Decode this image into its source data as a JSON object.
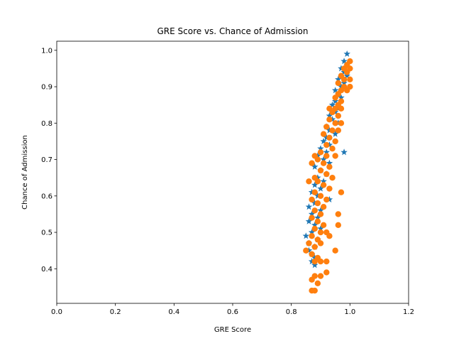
{
  "chart_data": {
    "type": "scatter",
    "title": "GRE Score vs. Chance of Admission",
    "xlabel": "GRE Score",
    "ylabel": "Chance of Admission",
    "xlim": [
      0.0,
      1.2
    ],
    "ylim": [
      0.305,
      1.025
    ],
    "xticks": [
      "0.0",
      "0.2",
      "0.4",
      "0.6",
      "0.8",
      "1.0",
      "1.2"
    ],
    "yticks": [
      "0.4",
      "0.5",
      "0.6",
      "0.7",
      "0.8",
      "0.9",
      "1.0"
    ],
    "grid": false,
    "legend": "none",
    "colors": {
      "series_a": "#1f77b4",
      "series_b": "#ff7f0e"
    },
    "series": [
      {
        "marker": "star",
        "color": "#1f77b4",
        "points": [
          [
            0.99,
            0.99
          ],
          [
            0.98,
            0.97
          ],
          [
            0.99,
            0.96
          ],
          [
            0.97,
            0.95
          ],
          [
            0.98,
            0.94
          ],
          [
            0.99,
            0.93
          ],
          [
            0.96,
            0.92
          ],
          [
            0.98,
            0.91
          ],
          [
            0.97,
            0.9
          ],
          [
            0.95,
            0.89
          ],
          [
            0.96,
            0.88
          ],
          [
            0.97,
            0.87
          ],
          [
            0.95,
            0.86
          ],
          [
            0.94,
            0.85
          ],
          [
            0.96,
            0.84
          ],
          [
            0.95,
            0.83
          ],
          [
            0.93,
            0.82
          ],
          [
            0.94,
            0.81
          ],
          [
            0.96,
            0.8
          ],
          [
            0.92,
            0.79
          ],
          [
            0.93,
            0.78
          ],
          [
            0.95,
            0.77
          ],
          [
            0.92,
            0.76
          ],
          [
            0.91,
            0.75
          ],
          [
            0.93,
            0.74
          ],
          [
            0.9,
            0.73
          ],
          [
            0.92,
            0.72
          ],
          [
            0.98,
            0.72
          ],
          [
            0.89,
            0.71
          ],
          [
            0.91,
            0.7
          ],
          [
            0.93,
            0.69
          ],
          [
            0.88,
            0.68
          ],
          [
            0.9,
            0.67
          ],
          [
            0.92,
            0.66
          ],
          [
            0.89,
            0.65
          ],
          [
            0.91,
            0.64
          ],
          [
            0.88,
            0.63
          ],
          [
            0.9,
            0.62
          ],
          [
            0.87,
            0.61
          ],
          [
            0.89,
            0.6
          ],
          [
            0.93,
            0.59
          ],
          [
            0.88,
            0.58
          ],
          [
            0.86,
            0.57
          ],
          [
            0.9,
            0.56
          ],
          [
            0.87,
            0.55
          ],
          [
            0.89,
            0.54
          ],
          [
            0.86,
            0.53
          ],
          [
            0.88,
            0.52
          ],
          [
            0.9,
            0.51
          ],
          [
            0.87,
            0.5
          ],
          [
            0.85,
            0.49
          ],
          [
            0.89,
            0.48
          ],
          [
            0.86,
            0.47
          ],
          [
            0.88,
            0.46
          ],
          [
            0.86,
            0.45
          ],
          [
            0.87,
            0.44
          ],
          [
            0.88,
            0.43
          ],
          [
            0.87,
            0.42
          ],
          [
            0.88,
            0.41
          ]
        ]
      },
      {
        "marker": "circle",
        "color": "#ff7f0e",
        "points": [
          [
            1.0,
            0.97
          ],
          [
            0.99,
            0.96
          ],
          [
            1.0,
            0.95
          ],
          [
            0.98,
            0.95
          ],
          [
            0.99,
            0.94
          ],
          [
            0.97,
            0.93
          ],
          [
            0.98,
            0.92
          ],
          [
            1.0,
            0.92
          ],
          [
            0.96,
            0.91
          ],
          [
            0.98,
            0.9
          ],
          [
            1.0,
            0.9
          ],
          [
            0.97,
            0.89
          ],
          [
            0.96,
            0.88
          ],
          [
            0.99,
            0.89
          ],
          [
            0.95,
            0.87
          ],
          [
            0.97,
            0.86
          ],
          [
            0.96,
            0.85
          ],
          [
            0.95,
            0.84
          ],
          [
            0.97,
            0.84
          ],
          [
            0.93,
            0.84
          ],
          [
            0.94,
            0.83
          ],
          [
            0.96,
            0.82
          ],
          [
            0.93,
            0.81
          ],
          [
            0.95,
            0.8
          ],
          [
            0.97,
            0.8
          ],
          [
            0.92,
            0.79
          ],
          [
            0.94,
            0.78
          ],
          [
            0.96,
            0.78
          ],
          [
            0.91,
            0.77
          ],
          [
            0.93,
            0.76
          ],
          [
            0.95,
            0.75
          ],
          [
            0.92,
            0.74
          ],
          [
            0.94,
            0.73
          ],
          [
            0.9,
            0.72
          ],
          [
            0.92,
            0.71
          ],
          [
            0.95,
            0.71
          ],
          [
            0.88,
            0.71
          ],
          [
            0.89,
            0.7
          ],
          [
            0.91,
            0.69
          ],
          [
            0.93,
            0.68
          ],
          [
            0.87,
            0.69
          ],
          [
            0.9,
            0.67
          ],
          [
            0.92,
            0.66
          ],
          [
            0.88,
            0.65
          ],
          [
            0.94,
            0.65
          ],
          [
            0.89,
            0.64
          ],
          [
            0.91,
            0.63
          ],
          [
            0.86,
            0.64
          ],
          [
            0.93,
            0.62
          ],
          [
            0.88,
            0.61
          ],
          [
            0.9,
            0.6
          ],
          [
            0.97,
            0.61
          ],
          [
            0.92,
            0.59
          ],
          [
            0.87,
            0.59
          ],
          [
            0.89,
            0.58
          ],
          [
            0.91,
            0.57
          ],
          [
            0.88,
            0.56
          ],
          [
            0.9,
            0.55
          ],
          [
            0.96,
            0.55
          ],
          [
            0.87,
            0.54
          ],
          [
            0.89,
            0.53
          ],
          [
            0.91,
            0.52
          ],
          [
            0.96,
            0.52
          ],
          [
            0.88,
            0.51
          ],
          [
            0.9,
            0.5
          ],
          [
            0.92,
            0.5
          ],
          [
            0.87,
            0.49
          ],
          [
            0.93,
            0.49
          ],
          [
            0.89,
            0.48
          ],
          [
            0.86,
            0.47
          ],
          [
            0.9,
            0.47
          ],
          [
            0.88,
            0.46
          ],
          [
            0.85,
            0.45
          ],
          [
            0.87,
            0.44
          ],
          [
            0.95,
            0.45
          ],
          [
            0.89,
            0.43
          ],
          [
            0.88,
            0.42
          ],
          [
            0.9,
            0.42
          ],
          [
            0.92,
            0.42
          ],
          [
            0.92,
            0.39
          ],
          [
            0.88,
            0.38
          ],
          [
            0.9,
            0.38
          ],
          [
            0.87,
            0.37
          ],
          [
            0.89,
            0.36
          ],
          [
            0.88,
            0.34
          ],
          [
            0.87,
            0.34
          ]
        ]
      }
    ]
  }
}
